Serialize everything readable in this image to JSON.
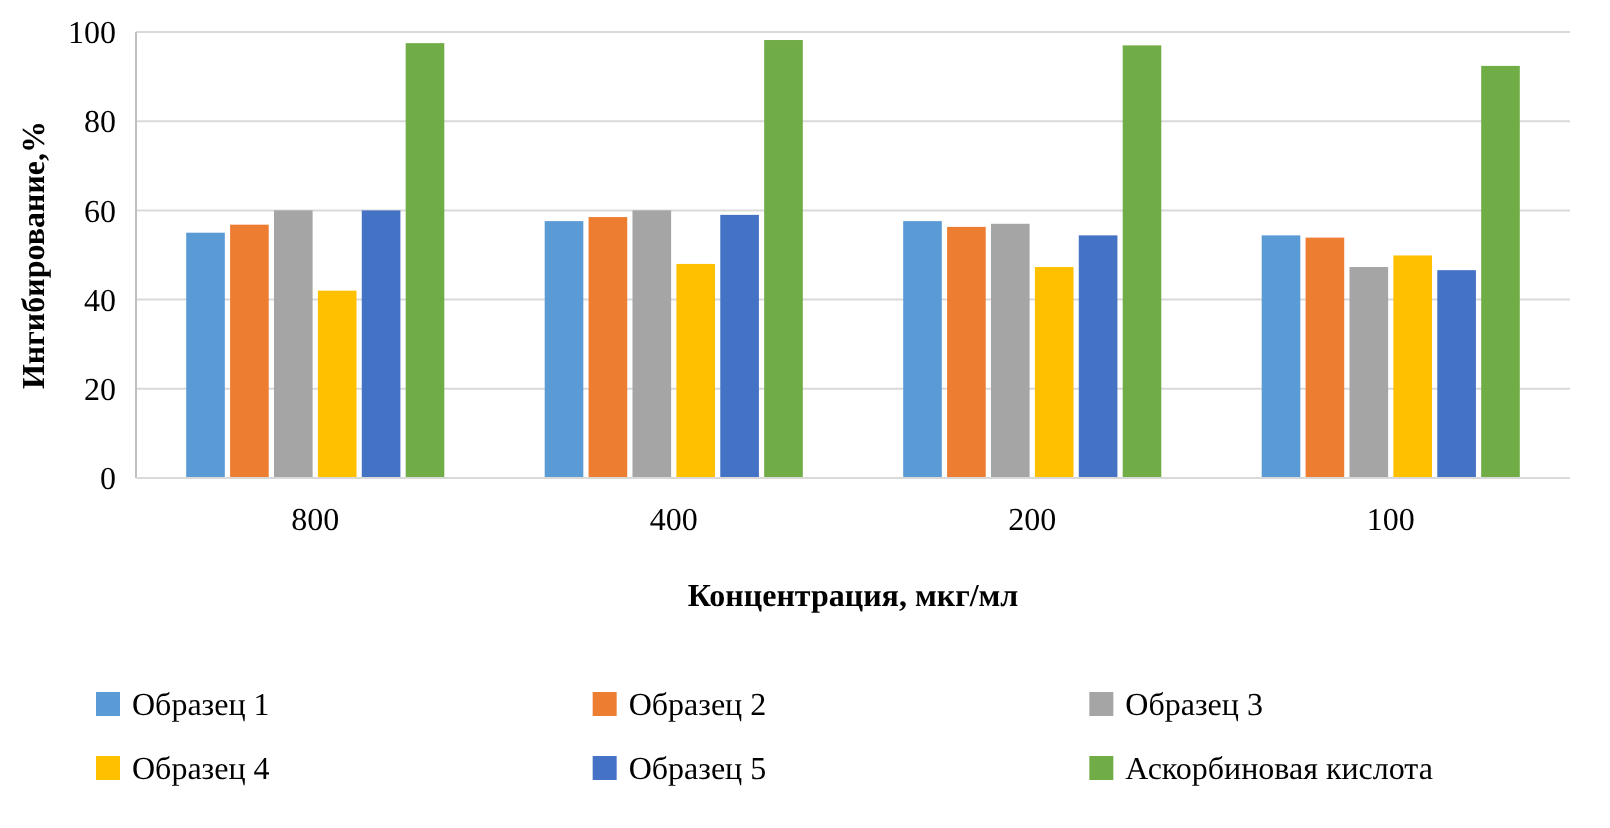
{
  "chart_data": {
    "type": "bar",
    "xlabel": "Концентрация, мкг/мл",
    "ylabel": "Ингибирование,%",
    "categories": [
      "800",
      "400",
      "200",
      "100"
    ],
    "series": [
      {
        "name": "Образец 1",
        "color": "#5b9bd5",
        "values": [
          55,
          57.6,
          57.6,
          54.4
        ]
      },
      {
        "name": "Образец 2",
        "color": "#ed7d31",
        "values": [
          56.8,
          58.5,
          56.3,
          53.9
        ]
      },
      {
        "name": "Образец 3",
        "color": "#a5a5a5",
        "values": [
          60,
          60,
          57,
          47.3
        ]
      },
      {
        "name": "Образец 4",
        "color": "#ffc000",
        "values": [
          42,
          48,
          47.3,
          49.9
        ]
      },
      {
        "name": "Образец 5",
        "color": "#4472c4",
        "values": [
          60,
          59,
          54.4,
          46.6
        ]
      },
      {
        "name": "Аскорбиновая кислота",
        "color": "#70ad47",
        "values": [
          97.5,
          98.2,
          97,
          92.4
        ]
      }
    ],
    "ylim": [
      0,
      100
    ],
    "yticks": [
      0,
      20,
      40,
      60,
      80,
      100
    ],
    "grid": "y",
    "legend": "bottom"
  }
}
